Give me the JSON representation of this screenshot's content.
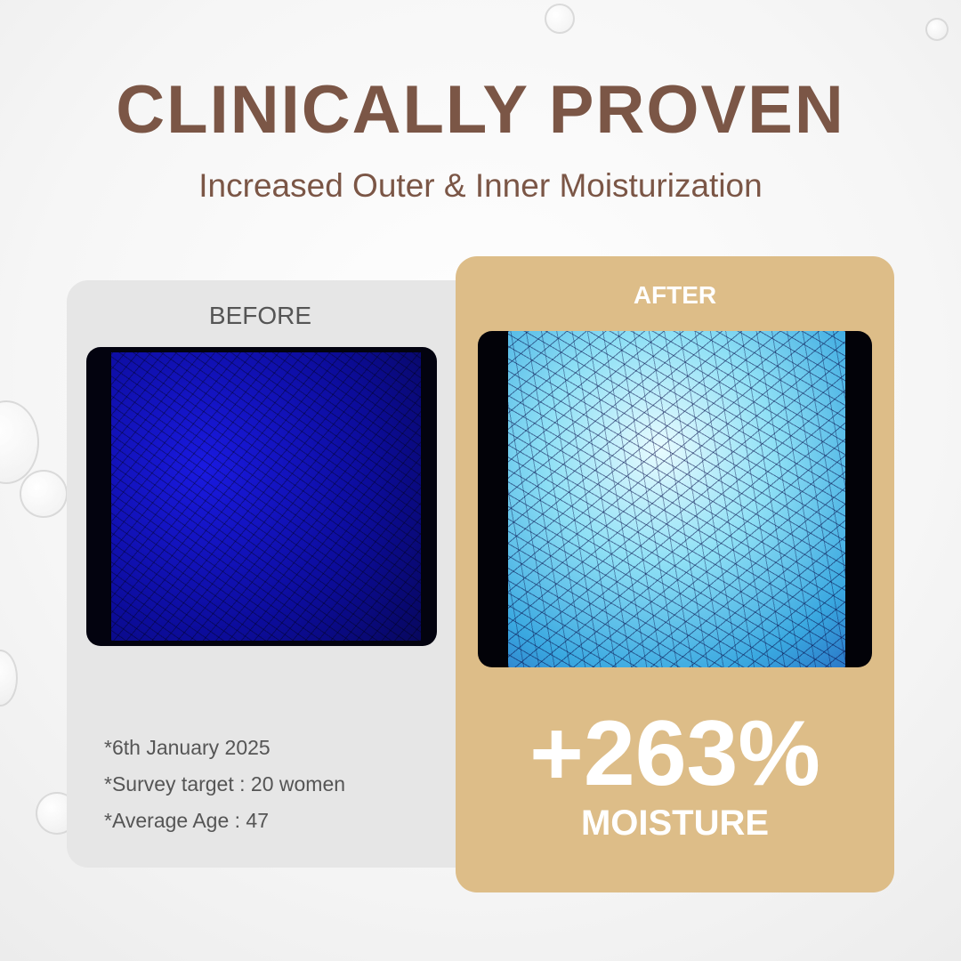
{
  "header": {
    "title": "CLINICALLY PROVEN",
    "subtitle": "Increased Outer & Inner Moisturization"
  },
  "before_card": {
    "label": "BEFORE",
    "notes": [
      "*6th January 2025",
      "*Survey target : 20 women",
      "*Average Age : 47"
    ]
  },
  "after_card": {
    "label": "AFTER",
    "result_value": "+263%",
    "result_label": "MOISTURE"
  },
  "colors": {
    "title_brown": "#7b5646",
    "after_card_gold": "#ddbd88",
    "before_card_gray": "#e6e6e6"
  }
}
